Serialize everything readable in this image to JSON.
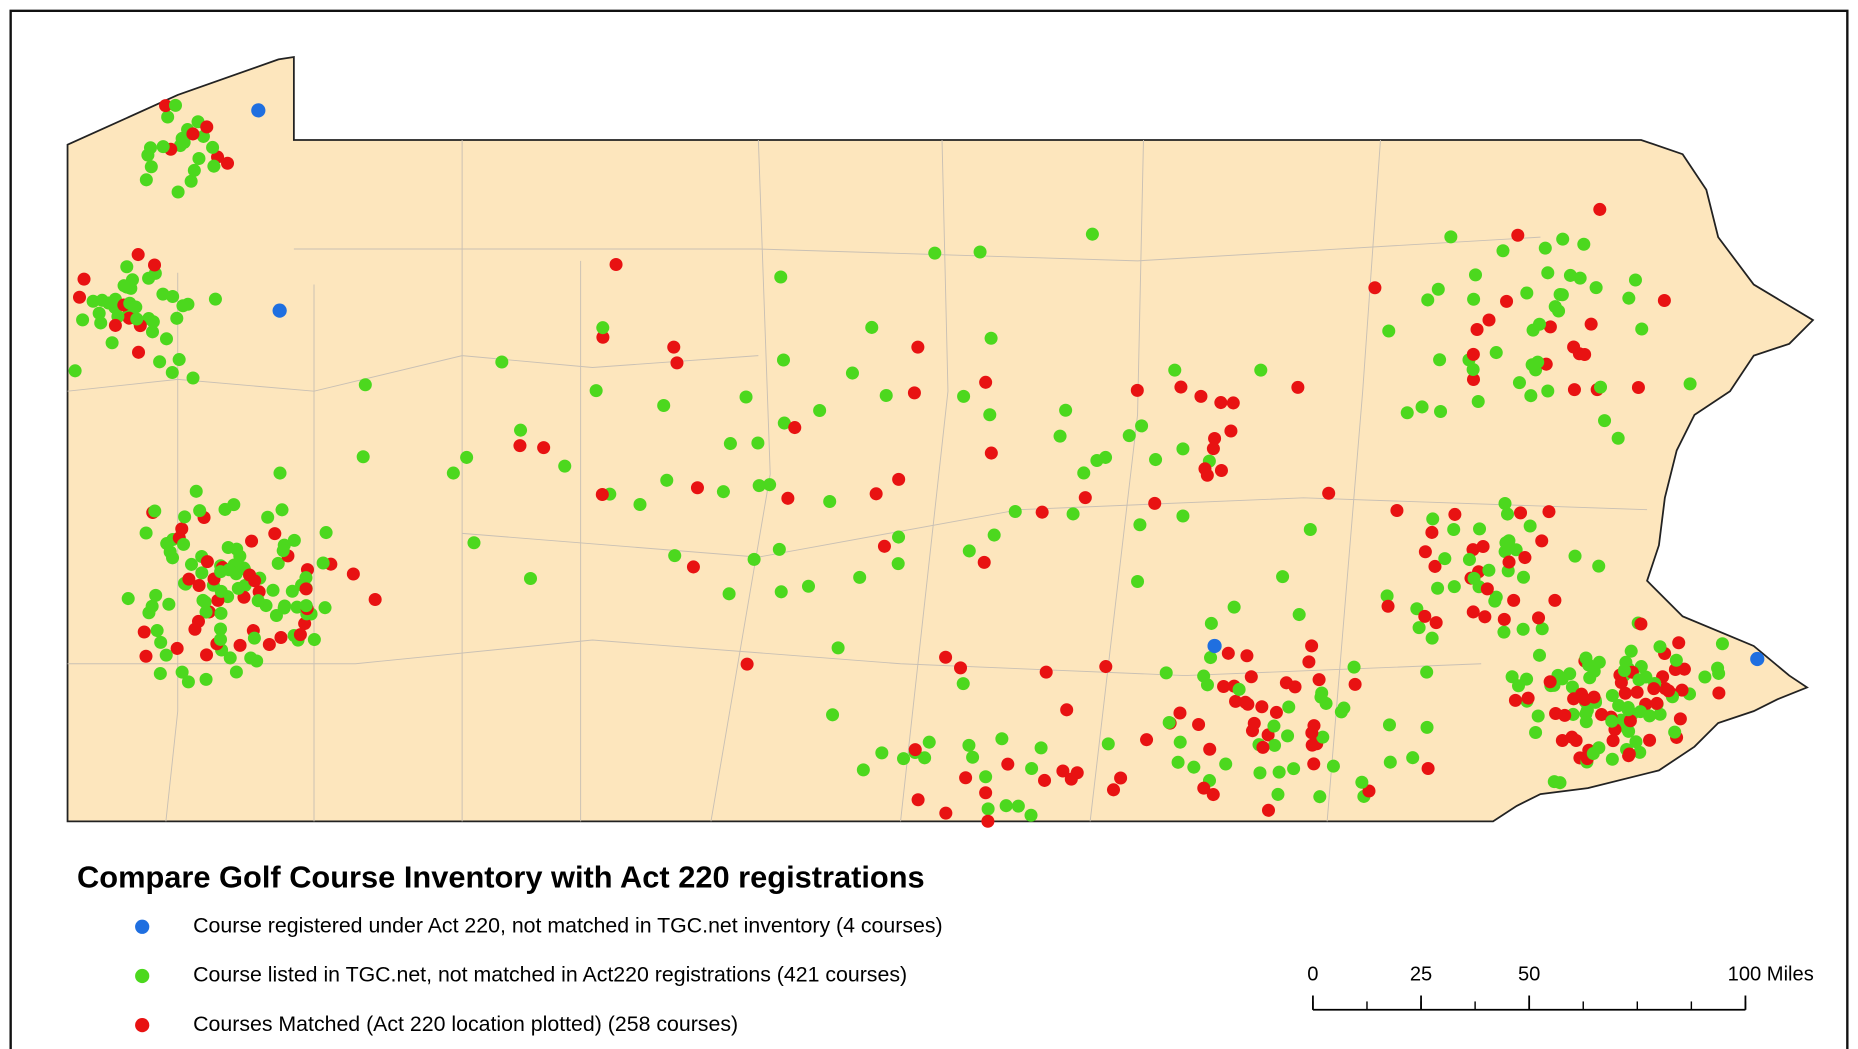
{
  "title": "Compare Golf Course Inventory with Act 220 registrations",
  "legend": [
    {
      "label": "Course registered under Act 220, not matched in TGC.net inventory (4 courses)",
      "color": "#1f6fe0"
    },
    {
      "label": "Course listed in TGC.net, not matched in Act220 registrations (421 courses)",
      "color": "#4cd81e"
    },
    {
      "label": "Courses Matched (Act 220 location plotted) (258 courses)",
      "color": "#e81212"
    }
  ],
  "scale_bar": {
    "ticks": [
      0,
      25,
      50,
      {
        "value": 100,
        "label": "100 Miles"
      }
    ]
  }
}
